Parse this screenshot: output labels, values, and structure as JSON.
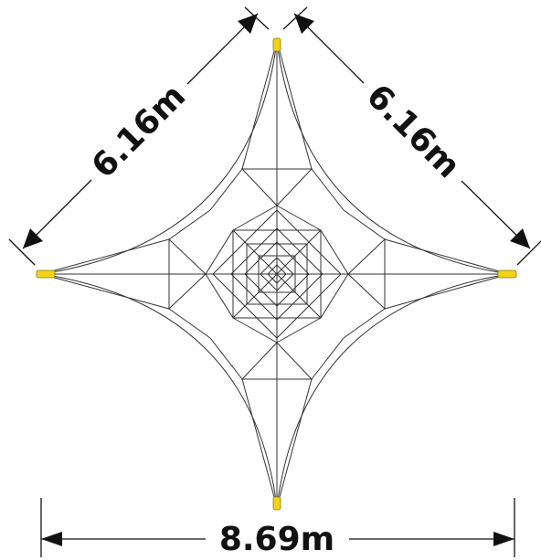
{
  "dimensions": {
    "left_side": "6.16m",
    "right_side": "6.16m",
    "width": "8.69m"
  }
}
